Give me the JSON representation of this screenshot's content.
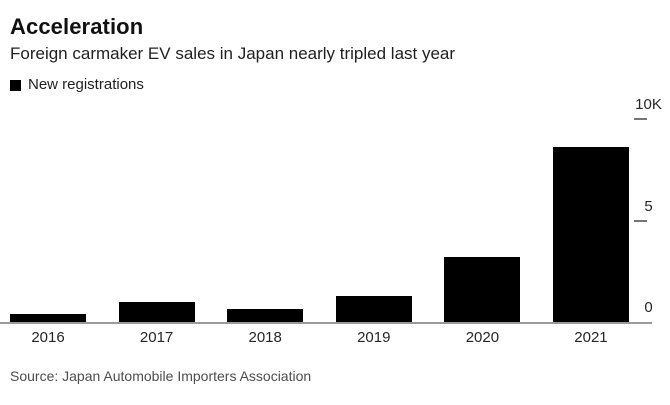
{
  "chart_data": {
    "type": "bar",
    "title": "Acceleration",
    "subtitle": "Foreign carmaker EV sales in Japan nearly tripled last year",
    "source": "Source: Japan Automobile Importers Association",
    "categories": [
      "2016",
      "2017",
      "2018",
      "2019",
      "2020",
      "2021"
    ],
    "series": [
      {
        "name": "New registrations",
        "values": [
          400,
          1000,
          650,
          1300,
          3200,
          8600
        ]
      }
    ],
    "xlabel": "",
    "ylabel": "",
    "ylim": [
      0,
      10000
    ],
    "yticks": [
      {
        "value": 0,
        "label": "0"
      },
      {
        "value": 5000,
        "label": "5"
      },
      {
        "value": 10000,
        "label": "10K"
      }
    ],
    "yaxis_side": "right",
    "legend_position": "top-left",
    "grid": false,
    "bar_color": "#000000",
    "axis_line_color": "#9a9a9a",
    "tick_mark_color": "#757575",
    "background_color": "#ffffff"
  }
}
